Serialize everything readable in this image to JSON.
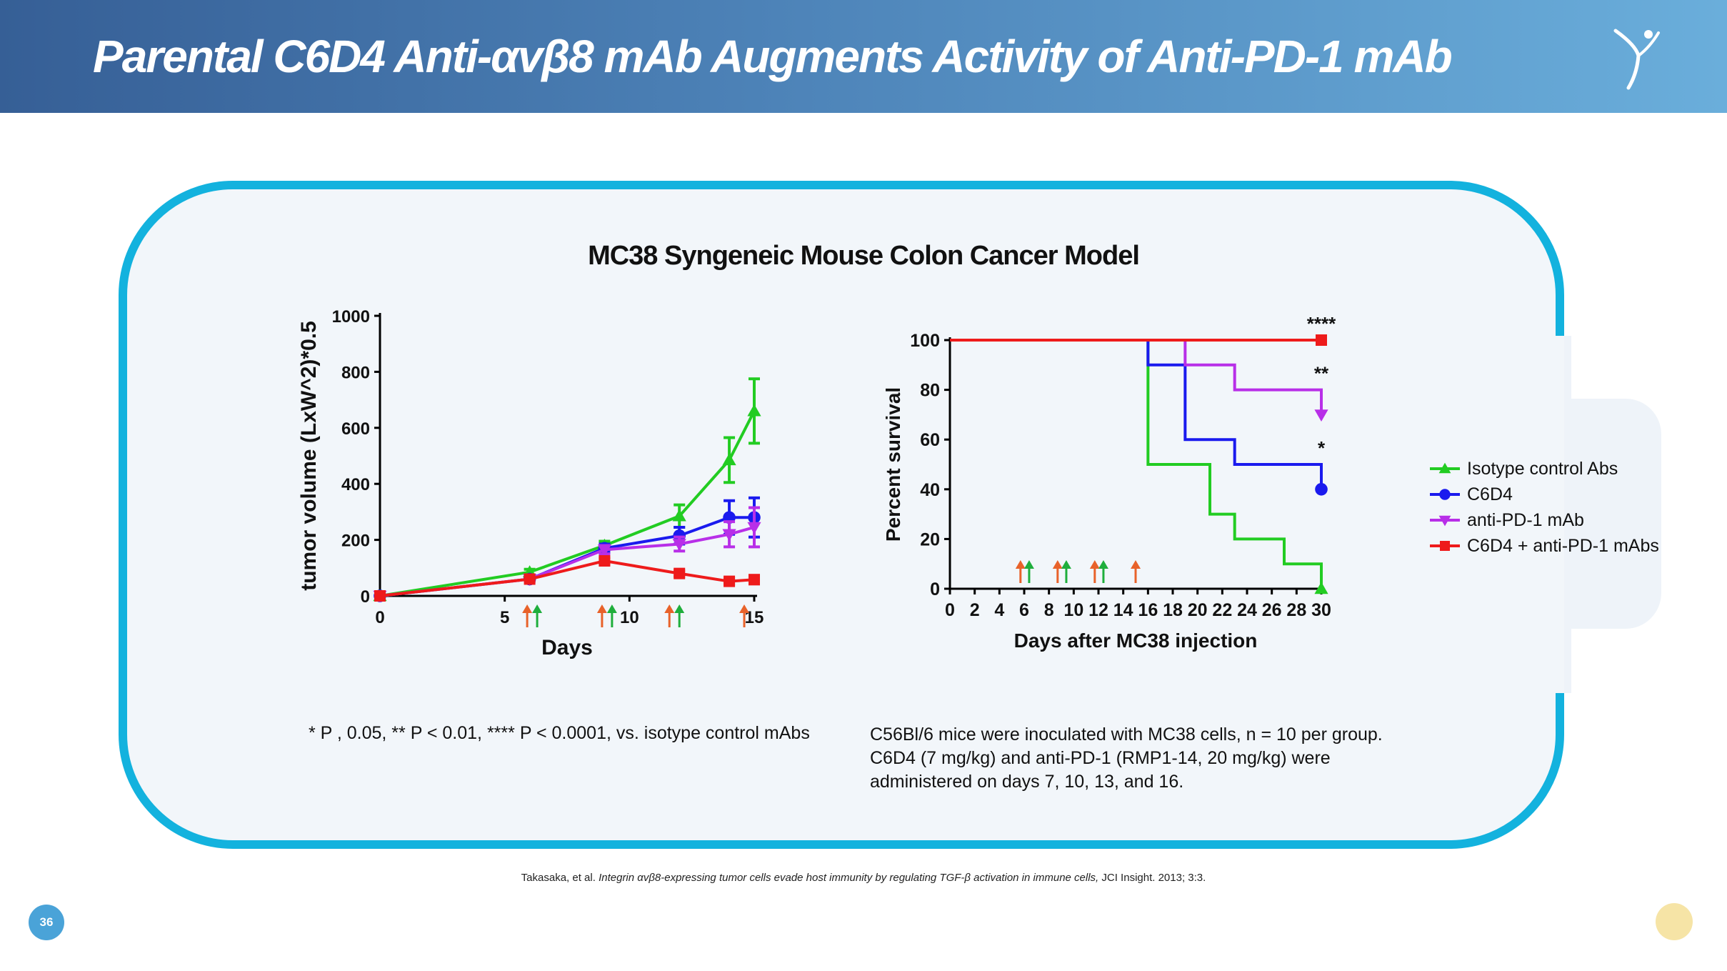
{
  "header": {
    "title": "Parental C6D4 Anti-αvβ8 mAb Augments Activity of Anti-PD-1 mAb"
  },
  "chart_heading": "MC38 Syngeneic Mouse Colon Cancer Model",
  "colors": {
    "isotype": "#22cc22",
    "c6d4": "#1a1aee",
    "antipd1": "#b82fe8",
    "combo": "#ee1b1b",
    "arrow_orange": "#e8622a",
    "arrow_green": "#1fae3c",
    "accent": "#13b2de"
  },
  "chart_data": [
    {
      "type": "line",
      "xlabel": "Days",
      "ylabel": "tumor volume (LxW^2)*0.5",
      "xlim": [
        0,
        15
      ],
      "ylim": [
        0,
        1000
      ],
      "xticks": [
        0,
        5,
        10,
        15
      ],
      "yticks": [
        0,
        200,
        400,
        600,
        800,
        1000
      ],
      "series": [
        {
          "key": "isotype",
          "x": [
            0,
            6,
            9,
            12,
            14,
            15
          ],
          "y": [
            0,
            85,
            180,
            285,
            485,
            660
          ],
          "err": [
            0,
            10,
            15,
            40,
            80,
            115
          ],
          "marker": "triangle-up"
        },
        {
          "key": "c6d4",
          "x": [
            0,
            6,
            9,
            12,
            14,
            15
          ],
          "y": [
            0,
            60,
            170,
            215,
            280,
            280
          ],
          "err": [
            0,
            8,
            15,
            30,
            60,
            70
          ],
          "marker": "circle"
        },
        {
          "key": "antipd1",
          "x": [
            0,
            6,
            9,
            12,
            14,
            15
          ],
          "y": [
            0,
            60,
            165,
            185,
            220,
            245
          ],
          "err": [
            0,
            8,
            15,
            25,
            45,
            70
          ],
          "marker": "triangle-down"
        },
        {
          "key": "combo",
          "x": [
            0,
            6,
            9,
            12,
            14,
            15
          ],
          "y": [
            0,
            60,
            125,
            80,
            52,
            58
          ],
          "err": [
            0,
            5,
            10,
            10,
            10,
            15
          ],
          "marker": "square"
        }
      ],
      "dosing_arrows": [
        {
          "x": 5.9,
          "color": "arrow_orange"
        },
        {
          "x": 6.3,
          "color": "arrow_green"
        },
        {
          "x": 8.9,
          "color": "arrow_orange"
        },
        {
          "x": 9.3,
          "color": "arrow_green"
        },
        {
          "x": 11.6,
          "color": "arrow_orange"
        },
        {
          "x": 12.0,
          "color": "arrow_green"
        },
        {
          "x": 14.6,
          "color": "arrow_orange"
        }
      ]
    },
    {
      "type": "line",
      "xlabel": "Days after MC38 injection",
      "ylabel": "Percent survival",
      "xlim": [
        0,
        30
      ],
      "ylim": [
        0,
        100
      ],
      "xticks": [
        0,
        2,
        4,
        6,
        8,
        10,
        12,
        14,
        16,
        18,
        20,
        22,
        24,
        26,
        28,
        30
      ],
      "yticks": [
        0,
        20,
        40,
        60,
        80,
        100
      ],
      "series": [
        {
          "key": "isotype",
          "x": [
            0,
            16,
            16,
            21,
            21,
            23,
            23,
            27,
            27,
            30,
            30
          ],
          "y": [
            100,
            100,
            50,
            50,
            30,
            30,
            20,
            20,
            10,
            10,
            0
          ],
          "marker": "triangle-up",
          "end_label": ""
        },
        {
          "key": "c6d4",
          "x": [
            0,
            16,
            16,
            19,
            19,
            23,
            23,
            30,
            30
          ],
          "y": [
            100,
            100,
            90,
            90,
            60,
            60,
            50,
            50,
            40
          ],
          "marker": "circle",
          "end_label": "*"
        },
        {
          "key": "antipd1",
          "x": [
            0,
            19,
            19,
            23,
            23,
            30,
            30
          ],
          "y": [
            100,
            100,
            90,
            90,
            80,
            80,
            70
          ],
          "marker": "triangle-down",
          "end_label": "**"
        },
        {
          "key": "combo",
          "x": [
            0,
            30
          ],
          "y": [
            100,
            100
          ],
          "marker": "square",
          "end_label": "****"
        }
      ],
      "dosing_arrows": [
        {
          "x": 5.7,
          "color": "arrow_orange"
        },
        {
          "x": 6.4,
          "color": "arrow_green"
        },
        {
          "x": 8.7,
          "color": "arrow_orange"
        },
        {
          "x": 9.4,
          "color": "arrow_green"
        },
        {
          "x": 11.7,
          "color": "arrow_orange"
        },
        {
          "x": 12.4,
          "color": "arrow_green"
        },
        {
          "x": 15.0,
          "color": "arrow_orange"
        }
      ]
    }
  ],
  "legend": [
    {
      "key": "isotype",
      "label": "Isotype control Abs",
      "marker": "triangle-up"
    },
    {
      "key": "c6d4",
      "label": "C6D4",
      "marker": "circle"
    },
    {
      "key": "antipd1",
      "label": "anti-PD-1 mAb",
      "marker": "triangle-down"
    },
    {
      "key": "combo",
      "label": "C6D4 + anti-PD-1 mAbs",
      "marker": "square"
    }
  ],
  "footnotes": {
    "significance": "* P , 0.05, ** P < 0.01, **** P < 0.0001, vs. isotype control mAbs",
    "methods": "C56Bl/6 mice were inoculated with MC38 cells, n = 10 per group. C6D4 (7 mg/kg) and anti-PD-1 (RMP1-14, 20 mg/kg) were administered on days 7, 10, 13, and 16."
  },
  "citation": {
    "authors": "Takasaka, et al.",
    "title": "Integrin αvβ8-expressing tumor cells evade host immunity by regulating TGF-β activation in immune cells,",
    "journal": "JCI Insight. 2013; 3:3."
  },
  "page_number": "36"
}
